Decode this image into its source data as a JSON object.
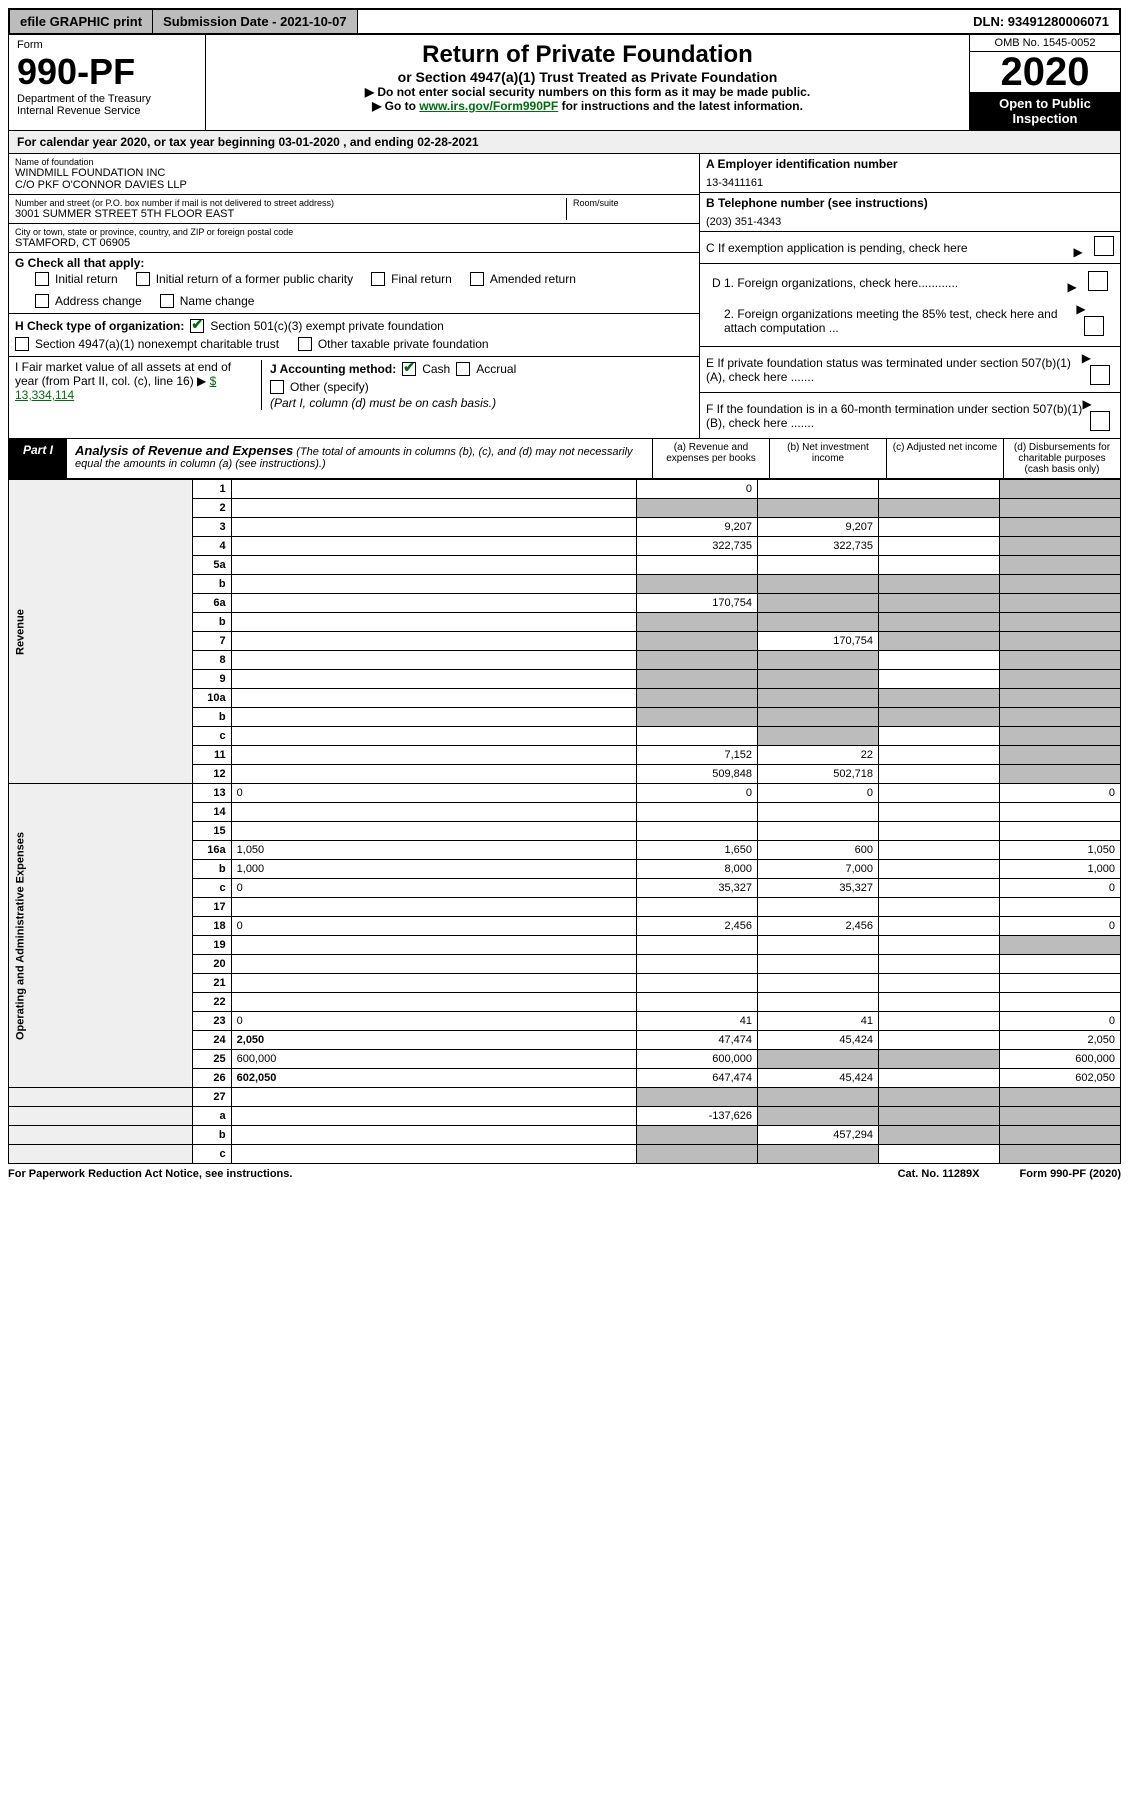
{
  "topbar": {
    "efile": "efile GRAPHIC print",
    "submission": "Submission Date - 2021-10-07",
    "dln": "DLN: 93491280006071"
  },
  "header": {
    "form_label": "Form",
    "form_no": "990-PF",
    "dept": "Department of the Treasury",
    "irs": "Internal Revenue Service",
    "title": "Return of Private Foundation",
    "subtitle": "or Section 4947(a)(1) Trust Treated as Private Foundation",
    "note1": "▶ Do not enter social security numbers on this form as it may be made public.",
    "note2_pre": "▶ Go to ",
    "note2_link": "www.irs.gov/Form990PF",
    "note2_post": " for instructions and the latest information.",
    "omb": "OMB No. 1545-0052",
    "year": "2020",
    "inspection": "Open to Public Inspection"
  },
  "calyear": {
    "text_pre": "For calendar year 2020, or tax year beginning ",
    "begin": "03-01-2020",
    "mid": " , and ending ",
    "end": "02-28-2021"
  },
  "info": {
    "name_label": "Name of foundation",
    "name1": "WINDMILL FOUNDATION INC",
    "name2": "C/O PKF O'CONNOR DAVIES LLP",
    "addr_label": "Number and street (or P.O. box number if mail is not delivered to street address)",
    "addr": "3001 SUMMER STREET 5TH FLOOR EAST",
    "room_label": "Room/suite",
    "city_label": "City or town, state or province, country, and ZIP or foreign postal code",
    "city": "STAMFORD, CT  06905",
    "a_label": "A Employer identification number",
    "a_val": "13-3411161",
    "b_label": "B Telephone number (see instructions)",
    "b_val": "(203) 351-4343",
    "c_label": "C If exemption application is pending, check here",
    "d1": "D 1. Foreign organizations, check here............",
    "d2": "2. Foreign organizations meeting the 85% test, check here and attach computation ...",
    "e": "E  If private foundation status was terminated under section 507(b)(1)(A), check here .......",
    "f": "F  If the foundation is in a 60-month termination under section 507(b)(1)(B), check here .......",
    "g_label": "G Check all that apply:",
    "g_opts": [
      "Initial return",
      "Initial return of a former public charity",
      "Final return",
      "Amended return",
      "Address change",
      "Name change"
    ],
    "h_label": "H Check type of organization:",
    "h_opt1": "Section 501(c)(3) exempt private foundation",
    "h_opt2": "Section 4947(a)(1) nonexempt charitable trust",
    "h_opt3": "Other taxable private foundation",
    "i_label": "I Fair market value of all assets at end of year (from Part II, col. (c), line 16) ▶",
    "i_val": "$  13,334,114",
    "j_label": "J Accounting method:",
    "j_cash": "Cash",
    "j_accrual": "Accrual",
    "j_other": "Other (specify)",
    "j_note": "(Part I, column (d) must be on cash basis.)"
  },
  "part1": {
    "label": "Part I",
    "title": "Analysis of Revenue and Expenses",
    "title_note": "(The total of amounts in columns (b), (c), and (d) may not necessarily equal the amounts in column (a) (see instructions).)",
    "col_a": "(a) Revenue and expenses per books",
    "col_b": "(b) Net investment income",
    "col_c": "(c) Adjusted net income",
    "col_d": "(d) Disbursements for charitable purposes (cash basis only)"
  },
  "sections": {
    "revenue": "Revenue",
    "expenses": "Operating and Administrative Expenses"
  },
  "rows": [
    {
      "n": "1",
      "d": "",
      "a": "0",
      "b": "",
      "c": "",
      "sh": [
        "d"
      ]
    },
    {
      "n": "2",
      "d": "",
      "a": "",
      "b": "",
      "c": "",
      "sh": [
        "a",
        "b",
        "c",
        "d"
      ]
    },
    {
      "n": "3",
      "d": "",
      "a": "9,207",
      "b": "9,207",
      "c": "",
      "sh": [
        "d"
      ]
    },
    {
      "n": "4",
      "d": "",
      "a": "322,735",
      "b": "322,735",
      "c": "",
      "sh": [
        "d"
      ]
    },
    {
      "n": "5a",
      "d": "",
      "a": "",
      "b": "",
      "c": "",
      "sh": [
        "d"
      ]
    },
    {
      "n": "b",
      "d": "",
      "a": "",
      "b": "",
      "c": "",
      "sh": [
        "a",
        "b",
        "c",
        "d"
      ]
    },
    {
      "n": "6a",
      "d": "",
      "a": "170,754",
      "b": "",
      "c": "",
      "sh": [
        "b",
        "c",
        "d"
      ]
    },
    {
      "n": "b",
      "d": "",
      "a": "",
      "b": "",
      "c": "",
      "sh": [
        "a",
        "b",
        "c",
        "d"
      ]
    },
    {
      "n": "7",
      "d": "",
      "a": "",
      "b": "170,754",
      "c": "",
      "sh": [
        "a",
        "c",
        "d"
      ]
    },
    {
      "n": "8",
      "d": "",
      "a": "",
      "b": "",
      "c": "",
      "sh": [
        "a",
        "b",
        "d"
      ]
    },
    {
      "n": "9",
      "d": "",
      "a": "",
      "b": "",
      "c": "",
      "sh": [
        "a",
        "b",
        "d"
      ]
    },
    {
      "n": "10a",
      "d": "",
      "a": "",
      "b": "",
      "c": "",
      "sh": [
        "a",
        "b",
        "c",
        "d"
      ]
    },
    {
      "n": "b",
      "d": "",
      "a": "",
      "b": "",
      "c": "",
      "sh": [
        "a",
        "b",
        "c",
        "d"
      ]
    },
    {
      "n": "c",
      "d": "",
      "a": "",
      "b": "",
      "c": "",
      "sh": [
        "b",
        "d"
      ]
    },
    {
      "n": "11",
      "d": "",
      "a": "7,152",
      "b": "22",
      "c": "",
      "sh": [
        "d"
      ]
    },
    {
      "n": "12",
      "d": "",
      "a": "509,848",
      "b": "502,718",
      "c": "",
      "sh": [
        "d"
      ],
      "bold": true
    }
  ],
  "rows2": [
    {
      "n": "13",
      "d": "0",
      "a": "0",
      "b": "0",
      "c": ""
    },
    {
      "n": "14",
      "d": "",
      "a": "",
      "b": "",
      "c": ""
    },
    {
      "n": "15",
      "d": "",
      "a": "",
      "b": "",
      "c": ""
    },
    {
      "n": "16a",
      "d": "1,050",
      "a": "1,650",
      "b": "600",
      "c": ""
    },
    {
      "n": "b",
      "d": "1,000",
      "a": "8,000",
      "b": "7,000",
      "c": ""
    },
    {
      "n": "c",
      "d": "0",
      "a": "35,327",
      "b": "35,327",
      "c": ""
    },
    {
      "n": "17",
      "d": "",
      "a": "",
      "b": "",
      "c": ""
    },
    {
      "n": "18",
      "d": "0",
      "a": "2,456",
      "b": "2,456",
      "c": ""
    },
    {
      "n": "19",
      "d": "",
      "a": "",
      "b": "",
      "c": "",
      "sh": [
        "d"
      ]
    },
    {
      "n": "20",
      "d": "",
      "a": "",
      "b": "",
      "c": ""
    },
    {
      "n": "21",
      "d": "",
      "a": "",
      "b": "",
      "c": ""
    },
    {
      "n": "22",
      "d": "",
      "a": "",
      "b": "",
      "c": ""
    },
    {
      "n": "23",
      "d": "0",
      "a": "41",
      "b": "41",
      "c": ""
    },
    {
      "n": "24",
      "d": "2,050",
      "a": "47,474",
      "b": "45,424",
      "c": "",
      "bold": true
    },
    {
      "n": "25",
      "d": "600,000",
      "a": "600,000",
      "b": "",
      "c": "",
      "sh": [
        "b",
        "c"
      ]
    },
    {
      "n": "26",
      "d": "602,050",
      "a": "647,474",
      "b": "45,424",
      "c": "",
      "bold": true
    }
  ],
  "rows3": [
    {
      "n": "27",
      "d": "",
      "a": "",
      "b": "",
      "c": "",
      "sh": [
        "a",
        "b",
        "c",
        "d"
      ]
    },
    {
      "n": "a",
      "d": "",
      "a": "-137,626",
      "b": "",
      "c": "",
      "sh": [
        "b",
        "c",
        "d"
      ],
      "bold": true
    },
    {
      "n": "b",
      "d": "",
      "a": "",
      "b": "457,294",
      "c": "",
      "sh": [
        "a",
        "c",
        "d"
      ],
      "bold": true
    },
    {
      "n": "c",
      "d": "",
      "a": "",
      "b": "",
      "c": "",
      "sh": [
        "a",
        "b",
        "d"
      ],
      "bold": true
    }
  ],
  "footer": {
    "left": "For Paperwork Reduction Act Notice, see instructions.",
    "mid": "Cat. No. 11289X",
    "right": "Form 990-PF (2020)"
  }
}
